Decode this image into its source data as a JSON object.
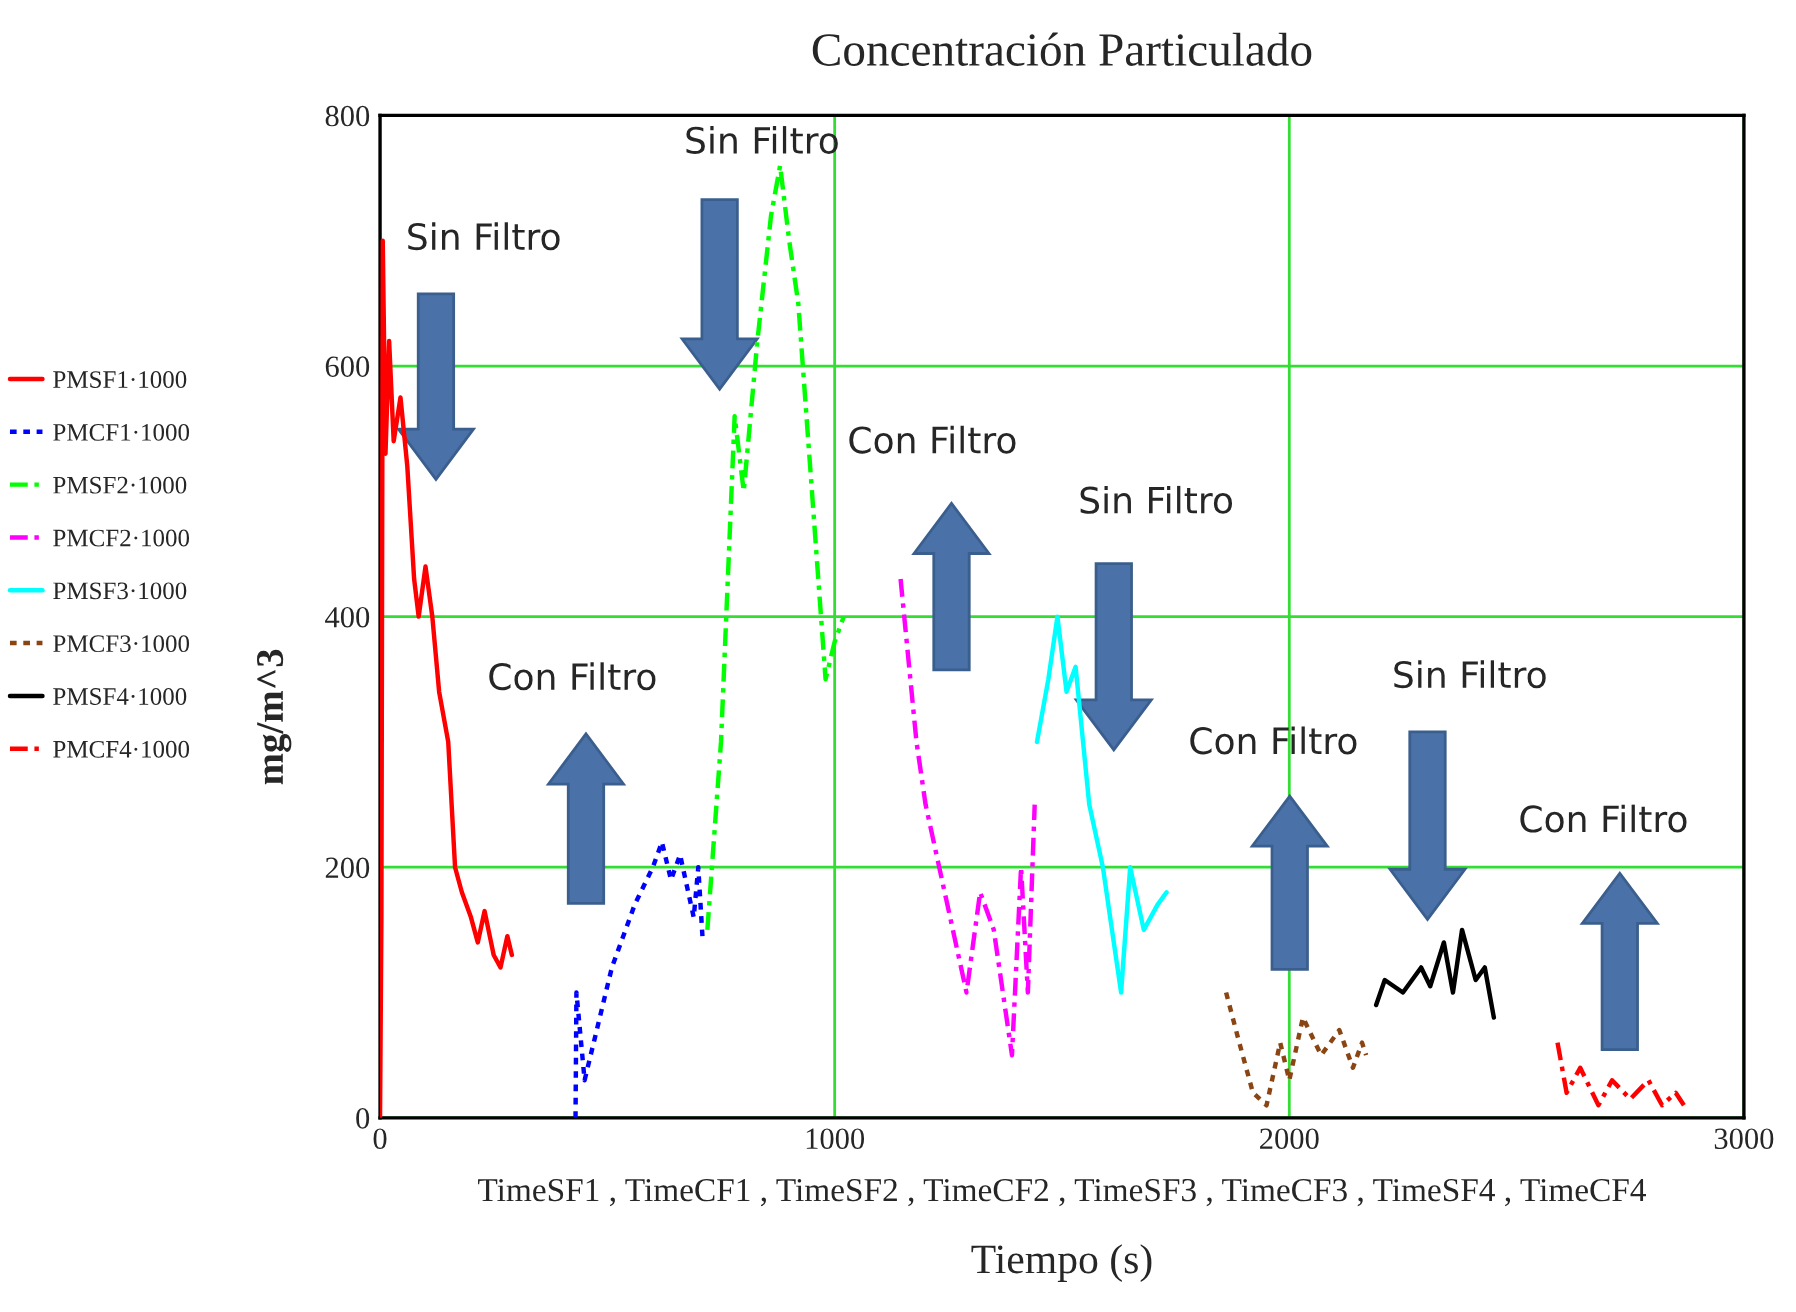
{
  "chart_data": {
    "type": "line",
    "title": "Concentración Particulado",
    "xlabel": "Tiempo (s)",
    "ylabel": "mg/m^3",
    "xlim": [
      0,
      3000
    ],
    "xticks": [
      0,
      1000,
      2000,
      3000
    ],
    "ylim": [
      0,
      800
    ],
    "yticks": [
      0,
      200,
      400,
      600,
      800
    ],
    "grid": true,
    "legend": "left",
    "marker": "none",
    "series": [
      {
        "name": "PMSF1·1000",
        "color": "#ff0000",
        "line_style": "solid",
        "x": [
          0,
          3,
          6,
          12,
          20,
          30,
          45,
          60,
          75,
          85,
          100,
          115,
          130,
          150,
          165,
          180,
          200,
          215,
          230,
          250,
          265,
          280,
          290
        ],
        "values": [
          0,
          160,
          700,
          530,
          620,
          540,
          575,
          520,
          430,
          400,
          440,
          400,
          340,
          300,
          200,
          180,
          160,
          140,
          165,
          130,
          120,
          145,
          130
        ]
      },
      {
        "name": "PMCF1·1000",
        "color": "#0000ff",
        "line_style": "dotted",
        "x": [
          430,
          432,
          450,
          470,
          510,
          560,
          600,
          620,
          640,
          660,
          690,
          700,
          710
        ],
        "values": [
          0,
          100,
          30,
          60,
          120,
          170,
          200,
          220,
          190,
          210,
          160,
          200,
          140
        ]
      },
      {
        "name": "PMSF2·1000",
        "color": "#00ff00",
        "line_style": "dashed",
        "x": [
          720,
          750,
          780,
          800,
          830,
          860,
          880,
          900,
          920,
          950,
          980,
          1000,
          1020
        ],
        "values": [
          150,
          300,
          560,
          500,
          620,
          720,
          760,
          700,
          650,
          500,
          350,
          380,
          400
        ]
      },
      {
        "name": "PMCF2·1000",
        "color": "#ff00ff",
        "line_style": "dashed",
        "x": [
          1145,
          1180,
          1200,
          1230,
          1260,
          1290,
          1320,
          1350,
          1390,
          1410,
          1425,
          1440
        ],
        "values": [
          430,
          300,
          250,
          200,
          150,
          100,
          180,
          150,
          50,
          200,
          100,
          250
        ]
      },
      {
        "name": "PMSF3·1000",
        "color": "#00ffff",
        "line_style": "solid",
        "x": [
          1445,
          1470,
          1490,
          1510,
          1530,
          1560,
          1590,
          1610,
          1630,
          1650,
          1680,
          1710,
          1730
        ],
        "values": [
          300,
          350,
          400,
          340,
          360,
          250,
          200,
          150,
          100,
          200,
          150,
          170,
          180
        ]
      },
      {
        "name": "PMCF3·1000",
        "color": "#8b4513",
        "line_style": "dotted",
        "x": [
          1861,
          1890,
          1920,
          1950,
          1980,
          2000,
          2030,
          2070,
          2110,
          2140,
          2160,
          2169
        ],
        "values": [
          100,
          60,
          20,
          10,
          60,
          30,
          80,
          50,
          70,
          40,
          60,
          50
        ]
      },
      {
        "name": "PMSF4·1000",
        "color": "#000000",
        "line_style": "solid",
        "x": [
          2191,
          2210,
          2250,
          2290,
          2310,
          2340,
          2360,
          2380,
          2410,
          2430,
          2450
        ],
        "values": [
          90,
          110,
          100,
          120,
          105,
          140,
          100,
          150,
          110,
          120,
          80
        ]
      },
      {
        "name": "PMCF4·1000",
        "color": "#ff0000",
        "line_style": "dashed",
        "x": [
          2590,
          2610,
          2640,
          2680,
          2710,
          2750,
          2790,
          2820,
          2850,
          2868
        ],
        "values": [
          60,
          20,
          40,
          10,
          30,
          15,
          30,
          10,
          20,
          10
        ]
      }
    ],
    "annotations": [
      "Sin Filtro",
      "Con Filtro",
      "Sin Filtro",
      "Con Filtro",
      "Sin Filtro",
      "Con Filtro",
      "Sin Filtro",
      "Con Filtro",
      "TimeSF1 , TimeCF1 , TimeSF2 , TimeCF2 , TimeSF3 , TimeCF3 , TimeSF4 , TimeCF4"
    ]
  }
}
